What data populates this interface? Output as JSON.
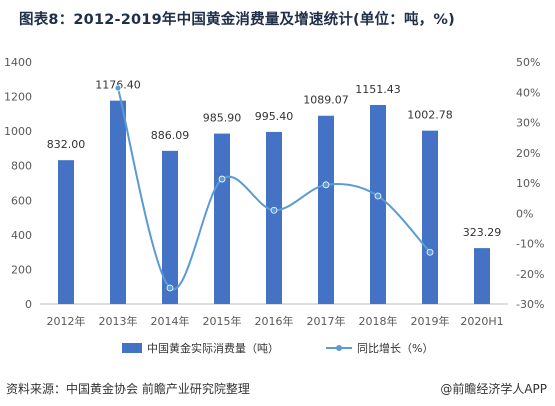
{
  "title": "图表8：2012-2019年中国黄金消费量及增速统计(单位：吨，%)",
  "source": "资料来源：中国黄金协会 前瞻产业研究院整理",
  "brand": "@前瞻经济学人APP",
  "colors": {
    "bar": "#4472c4",
    "line": "#5b9bd5"
  },
  "chart_data": {
    "type": "bar",
    "categories": [
      "2012年",
      "2013年",
      "2014年",
      "2015年",
      "2016年",
      "2017年",
      "2018年",
      "2019年",
      "2020H1"
    ],
    "series": [
      {
        "name": "中国黄金实际消费量（吨）",
        "type": "bar",
        "axis": "left",
        "values": [
          832.0,
          1176.4,
          886.09,
          985.9,
          995.4,
          1089.07,
          1151.43,
          1002.78,
          323.29
        ]
      },
      {
        "name": "同比增长（%）",
        "type": "line",
        "axis": "right",
        "smooth": true,
        "values": [
          null,
          41.4,
          -24.7,
          11.3,
          1.0,
          9.4,
          5.7,
          -12.9,
          null
        ]
      }
    ],
    "data_labels": [
      "832.00",
      "1176.40",
      "886.09",
      "985.90",
      "995.40",
      "1089.07",
      "1151.43",
      "1002.78",
      "323.29"
    ],
    "ylim": [
      0,
      1400
    ],
    "yticks": [
      "0",
      "200",
      "400",
      "600",
      "800",
      "1000",
      "1200",
      "1400"
    ],
    "y2lim": [
      -30,
      50
    ],
    "y2ticks": [
      "-30%",
      "-20%",
      "-10%",
      "0%",
      "10%",
      "20%",
      "30%",
      "40%",
      "50%"
    ],
    "grid": false,
    "legend": "bottom"
  }
}
